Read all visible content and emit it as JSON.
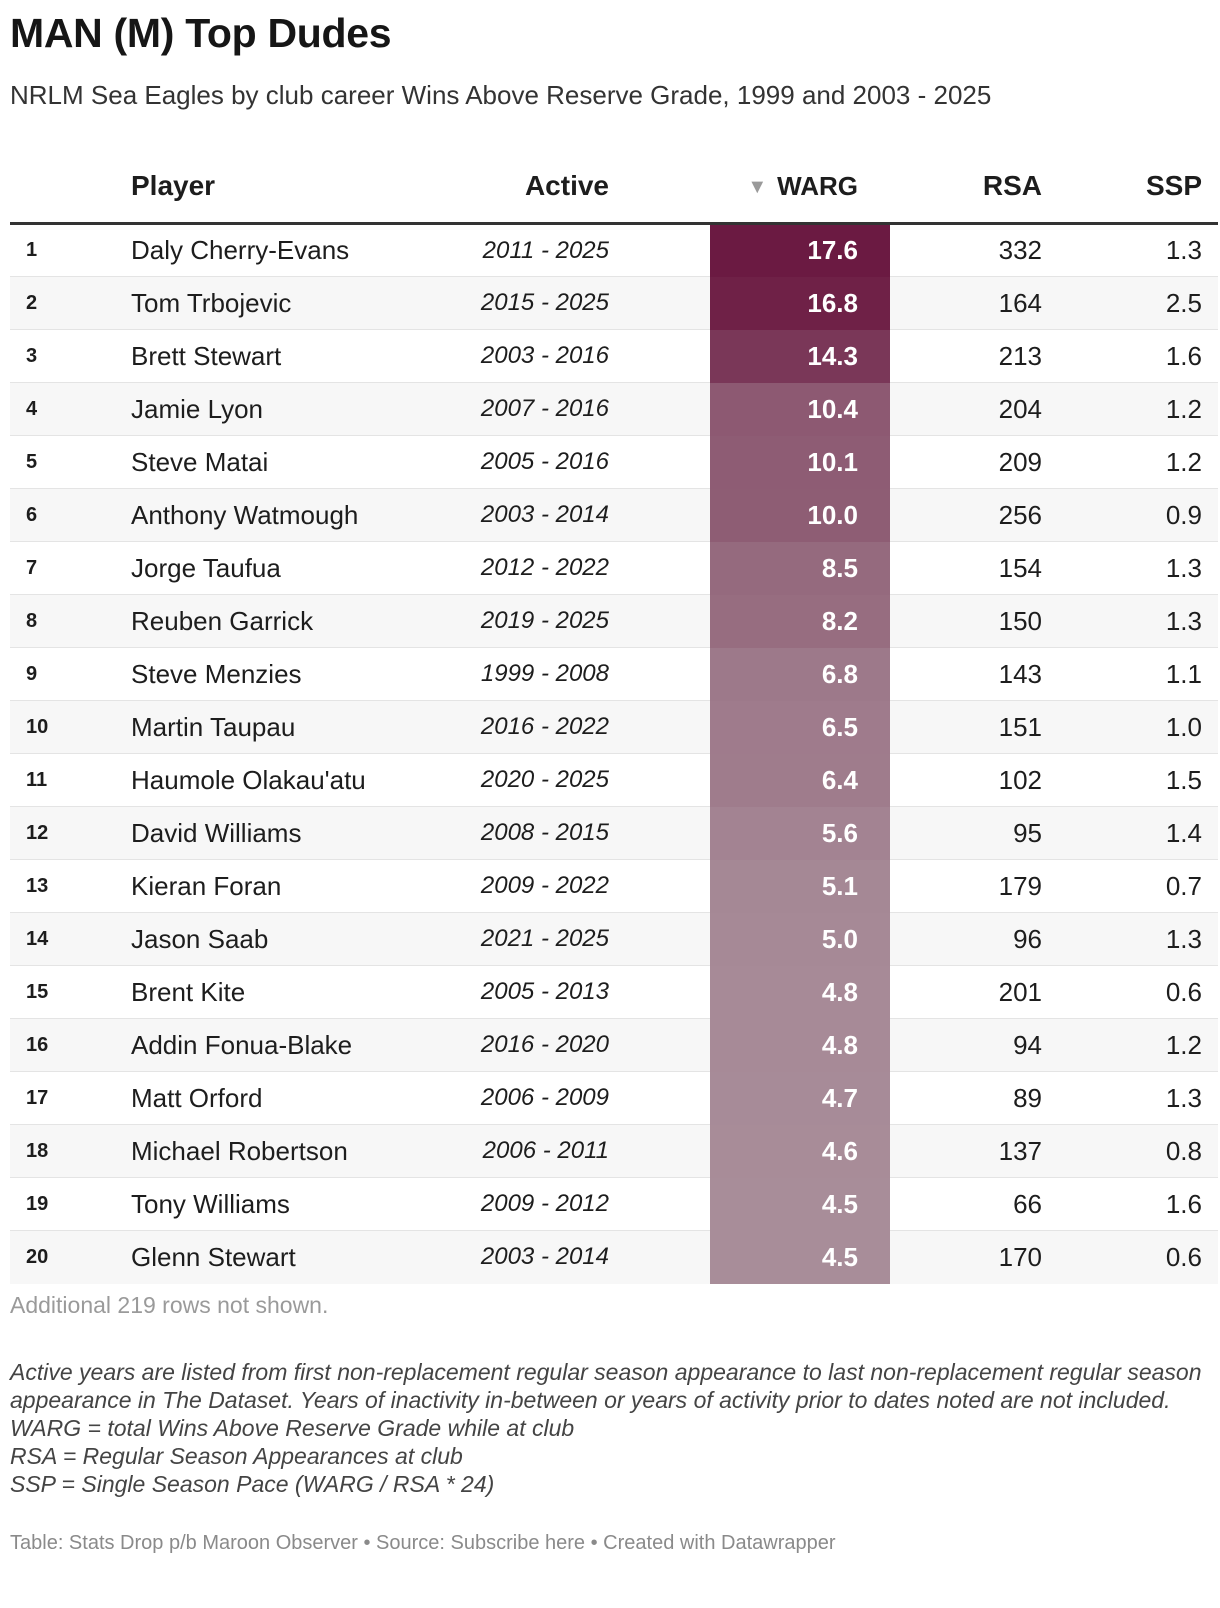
{
  "title": "MAN (M) Top Dudes",
  "subtitle": "NRLM Sea Eagles by club career Wins Above Reserve Grade, 1999 and 2003 - 2025",
  "columns": {
    "rank": "",
    "player": "Player",
    "active": "Active",
    "sort_icon": "▼",
    "warg": "WARG",
    "rsa": "RSA",
    "ssp": "SSP"
  },
  "colors": {
    "warg_high": "#6b1a42",
    "warg_low": "#a88d99"
  },
  "chart_data": {
    "type": "table",
    "title": "MAN (M) Top Dudes",
    "columns": [
      "Player",
      "Active",
      "WARG",
      "RSA",
      "SSP"
    ],
    "rows": [
      {
        "rank": "1",
        "player": "Daly Cherry-Evans",
        "active": "2011 - 2025",
        "warg": "17.6",
        "rsa": "332",
        "ssp": "1.3"
      },
      {
        "rank": "2",
        "player": "Tom Trbojevic",
        "active": "2015 - 2025",
        "warg": "16.8",
        "rsa": "164",
        "ssp": "2.5"
      },
      {
        "rank": "3",
        "player": "Brett Stewart",
        "active": "2003 - 2016",
        "warg": "14.3",
        "rsa": "213",
        "ssp": "1.6"
      },
      {
        "rank": "4",
        "player": "Jamie Lyon",
        "active": "2007 - 2016",
        "warg": "10.4",
        "rsa": "204",
        "ssp": "1.2"
      },
      {
        "rank": "5",
        "player": "Steve Matai",
        "active": "2005 - 2016",
        "warg": "10.1",
        "rsa": "209",
        "ssp": "1.2"
      },
      {
        "rank": "6",
        "player": "Anthony Watmough",
        "active": "2003 - 2014",
        "warg": "10.0",
        "rsa": "256",
        "ssp": "0.9"
      },
      {
        "rank": "7",
        "player": "Jorge Taufua",
        "active": "2012 - 2022",
        "warg": "8.5",
        "rsa": "154",
        "ssp": "1.3"
      },
      {
        "rank": "8",
        "player": "Reuben Garrick",
        "active": "2019 - 2025",
        "warg": "8.2",
        "rsa": "150",
        "ssp": "1.3"
      },
      {
        "rank": "9",
        "player": "Steve Menzies",
        "active": "1999 - 2008",
        "warg": "6.8",
        "rsa": "143",
        "ssp": "1.1"
      },
      {
        "rank": "10",
        "player": "Martin Taupau",
        "active": "2016 - 2022",
        "warg": "6.5",
        "rsa": "151",
        "ssp": "1.0"
      },
      {
        "rank": "11",
        "player": "Haumole Olakau'atu",
        "active": "2020 - 2025",
        "warg": "6.4",
        "rsa": "102",
        "ssp": "1.5"
      },
      {
        "rank": "12",
        "player": "David Williams",
        "active": "2008 - 2015",
        "warg": "5.6",
        "rsa": "95",
        "ssp": "1.4"
      },
      {
        "rank": "13",
        "player": "Kieran Foran",
        "active": "2009 - 2022",
        "warg": "5.1",
        "rsa": "179",
        "ssp": "0.7"
      },
      {
        "rank": "14",
        "player": "Jason Saab",
        "active": "2021 - 2025",
        "warg": "5.0",
        "rsa": "96",
        "ssp": "1.3"
      },
      {
        "rank": "15",
        "player": "Brent Kite",
        "active": "2005 - 2013",
        "warg": "4.8",
        "rsa": "201",
        "ssp": "0.6"
      },
      {
        "rank": "16",
        "player": "Addin Fonua-Blake",
        "active": "2016 - 2020",
        "warg": "4.8",
        "rsa": "94",
        "ssp": "1.2"
      },
      {
        "rank": "17",
        "player": "Matt Orford",
        "active": "2006 - 2009",
        "warg": "4.7",
        "rsa": "89",
        "ssp": "1.3"
      },
      {
        "rank": "18",
        "player": "Michael Robertson",
        "active": "2006 - 2011",
        "warg": "4.6",
        "rsa": "137",
        "ssp": "0.8"
      },
      {
        "rank": "19",
        "player": "Tony Williams",
        "active": "2009 - 2012",
        "warg": "4.5",
        "rsa": "66",
        "ssp": "1.6"
      },
      {
        "rank": "20",
        "player": "Glenn Stewart",
        "active": "2003 - 2014",
        "warg": "4.5",
        "rsa": "170",
        "ssp": "0.6"
      }
    ]
  },
  "rows_not_shown": "Additional 219 rows not shown.",
  "notes": [
    "Active years are listed from first non-replacement regular season appearance to last non-replacement regular season appearance in The Dataset. Years of inactivity in-between or years of activity prior to dates noted are not included.",
    "WARG = total Wins Above Reserve Grade while at club",
    "RSA = Regular Season Appearances at club",
    "SSP = Single Season Pace (WARG / RSA * 24)"
  ],
  "footer": "Table: Stats Drop p/b Maroon Observer • Source: Subscribe here • Created with Datawrapper"
}
